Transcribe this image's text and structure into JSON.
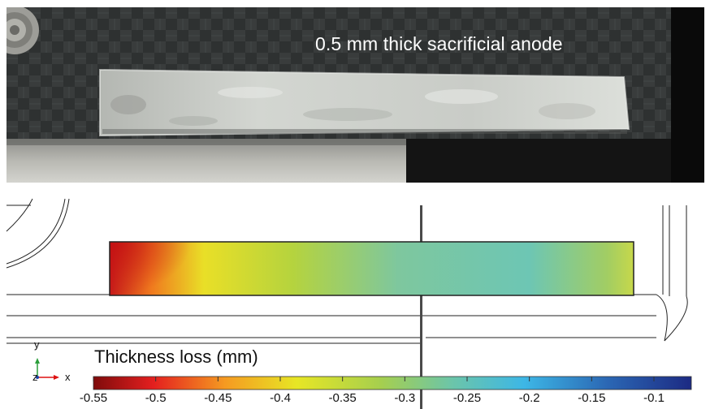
{
  "photo": {
    "caption": "0.5 mm thick sacrificial anode"
  },
  "simulation": {
    "colorbar_title": "Thickness loss (mm)",
    "colorbar_ticks": [
      "-0.55",
      "-0.5",
      "-0.45",
      "-0.4",
      "-0.35",
      "-0.3",
      "-0.25",
      "-0.2",
      "-0.15",
      "-0.1"
    ],
    "colorbar_range": [
      -0.55,
      -0.07
    ],
    "axis_triad": {
      "y": "y",
      "x": "x",
      "z": "z"
    },
    "colors": {
      "colormap": [
        "#7f0b0b",
        "#e41f1f",
        "#f59a21",
        "#e7e625",
        "#a6cf4e",
        "#6cc5a9",
        "#3db7e6",
        "#2b67b4",
        "#1c2a83"
      ]
    }
  }
}
